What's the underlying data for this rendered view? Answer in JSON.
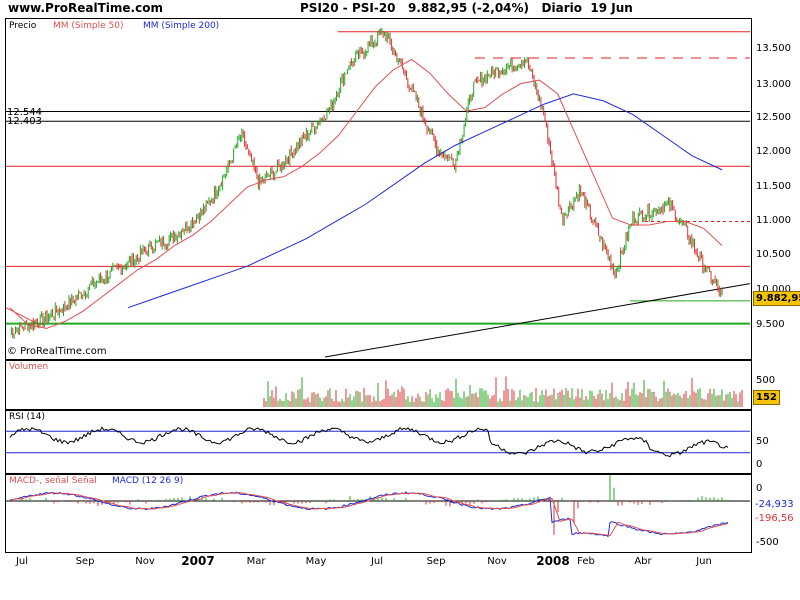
{
  "header": {
    "site": "www.ProRealTime.com",
    "title": "PSI20 - PSI-20   9.882,95 (-2,04%)   Diario  19 Jun"
  },
  "main": {
    "legend_price": "Precio",
    "legend_mm50": "MM (Simple 50)",
    "legend_mm200": "MM (Simple 200)",
    "level_12544": "12.544",
    "level_12403": "12.403",
    "copyright": "© ProRealTime.com",
    "last_price": "9.882,95"
  },
  "volume": {
    "label": "Volumen",
    "last_value": "152"
  },
  "rsi": {
    "label": "RSI (14)"
  },
  "macd": {
    "label_signal": "MACD-, señal Señal",
    "label_macd": "MACD (12 26 9)",
    "value_1": "-24,933",
    "value_2": "-196,56"
  },
  "colors": {
    "mm50": "#e05050",
    "mm200": "#1e2bd6",
    "up": "#22aa22",
    "down": "#dd3333",
    "support": "#22aa22",
    "resistance": "#dd2222",
    "trend": "#000000"
  },
  "chart_data": [
    {
      "type": "line",
      "title": "PSI20 - PSI-20",
      "yticks": [
        "13.500",
        "13.000",
        "12.500",
        "12.000",
        "11.500",
        "11.000",
        "10.500",
        "10.000",
        "9.500"
      ],
      "ylim": [
        9.0,
        13.9
      ],
      "xticks": [
        "Jul",
        "Sep",
        "Nov",
        "2007",
        "Mar",
        "May",
        "Jul",
        "Sep",
        "Nov",
        "2008",
        "Feb",
        "Abr",
        "Jun"
      ],
      "series": [
        {
          "name": "Precio",
          "values": [
            9.35,
            9.45,
            9.55,
            9.7,
            9.9,
            10.1,
            10.25,
            10.4,
            10.6,
            10.7,
            10.9,
            11.15,
            11.6,
            12.2,
            11.5,
            11.7,
            12.0,
            12.3,
            12.6,
            13.2,
            13.45,
            13.7,
            13.2,
            12.6,
            12.0,
            11.8,
            12.9,
            13.1,
            13.2,
            13.3,
            12.5,
            11.0,
            11.4,
            10.8,
            10.2,
            11.0,
            11.1,
            11.2,
            10.8,
            10.3,
            9.88
          ]
        },
        {
          "name": "MM (Simple 50)",
          "values": [
            9.7,
            9.45,
            9.4,
            9.5,
            9.65,
            9.85,
            10.05,
            10.25,
            10.4,
            10.6,
            10.75,
            10.95,
            11.2,
            11.45,
            11.55,
            11.6,
            11.75,
            11.95,
            12.2,
            12.55,
            12.9,
            13.15,
            13.3,
            13.1,
            12.8,
            12.55,
            12.6,
            12.8,
            12.95,
            13.0,
            12.8,
            12.2,
            11.6,
            11.0,
            10.9,
            10.9,
            10.95,
            10.95,
            10.85,
            10.6
          ]
        },
        {
          "name": "MM (Simple 200)",
          "values": [
            9.7,
            9.85,
            10.0,
            10.15,
            10.3,
            10.5,
            10.7,
            10.95,
            11.2,
            11.5,
            11.8,
            12.05,
            12.25,
            12.45,
            12.65,
            12.8,
            12.7,
            12.5,
            12.2,
            11.9,
            11.7
          ]
        }
      ],
      "levels": [
        12.544,
        12.403,
        13.7,
        13.32,
        11.75,
        10.95,
        10.3,
        9.8,
        9.47
      ]
    },
    {
      "type": "bar",
      "title": "Volumen",
      "yticks": [
        "500",
        "0"
      ],
      "last": 152
    },
    {
      "type": "line",
      "title": "RSI (14)",
      "yticks": [
        "50",
        "0"
      ],
      "levels": [
        70,
        30
      ]
    },
    {
      "type": "line",
      "title": "MACD (12 26 9)",
      "yticks": [
        "0",
        "-500"
      ],
      "series": [
        {
          "name": "MACD",
          "last": -196.56
        },
        {
          "name": "Señal",
          "last": -24.933
        }
      ]
    }
  ]
}
